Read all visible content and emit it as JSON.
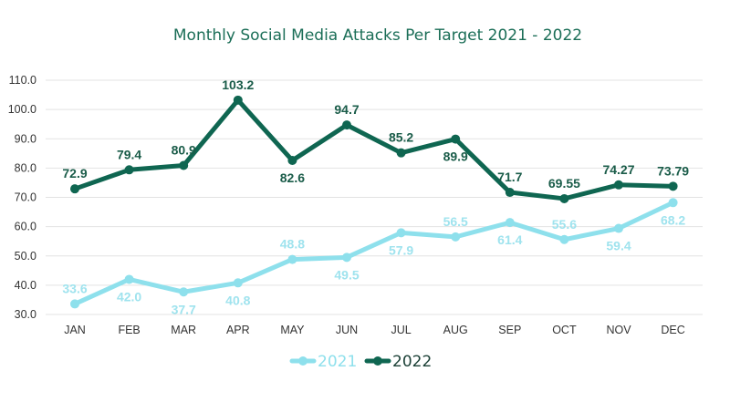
{
  "chart_data": {
    "type": "line",
    "title": "Monthly Social Media Attacks Per Target 2021 - 2022",
    "xlabel": "",
    "ylabel": "",
    "categories": [
      "JAN",
      "FEB",
      "MAR",
      "APR",
      "MAY",
      "JUN",
      "JUL",
      "AUG",
      "SEP",
      "OCT",
      "NOV",
      "DEC"
    ],
    "ylim": [
      30,
      110
    ],
    "yticks": [
      "30.0",
      "40.0",
      "50.0",
      "60.0",
      "70.0",
      "80.0",
      "90.0",
      "100.0",
      "110.0"
    ],
    "grid": true,
    "legend_position": "bottom",
    "series": [
      {
        "name": "2021",
        "color": "#8ee0ec",
        "values": [
          33.6,
          42.0,
          37.7,
          40.8,
          48.8,
          49.5,
          57.9,
          56.5,
          61.4,
          55.6,
          59.4,
          68.2
        ],
        "labels": [
          "33.6",
          "42.0",
          "37.7",
          "40.8",
          "48.8",
          "49.5",
          "57.9",
          "56.5",
          "61.4",
          "55.6",
          "59.4",
          "68.2"
        ]
      },
      {
        "name": "2022",
        "color": "#0f6651",
        "values": [
          72.9,
          79.4,
          80.9,
          103.2,
          82.6,
          94.7,
          85.2,
          89.9,
          71.7,
          69.55,
          74.27,
          73.79
        ],
        "labels": [
          "72.9",
          "79.4",
          "80.9",
          "103.2",
          "82.6",
          "94.7",
          "85.2",
          "89.9",
          "71.7",
          "69.55",
          "74.27",
          "73.79"
        ]
      }
    ]
  }
}
